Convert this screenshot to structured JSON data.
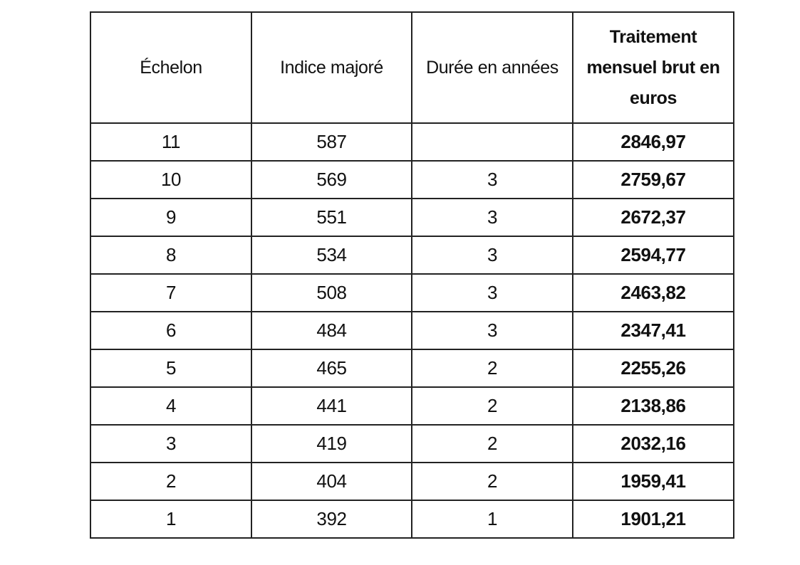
{
  "table": {
    "headers": {
      "echelon": "Échelon",
      "indice": "Indice majoré",
      "duree": "Durée en années",
      "traitement": "Traitement mensuel brut en euros"
    },
    "rows": [
      {
        "echelon": "11",
        "indice": "587",
        "duree": "",
        "traitement": "2846,97"
      },
      {
        "echelon": "10",
        "indice": "569",
        "duree": "3",
        "traitement": "2759,67"
      },
      {
        "echelon": "9",
        "indice": "551",
        "duree": "3",
        "traitement": "2672,37"
      },
      {
        "echelon": "8",
        "indice": "534",
        "duree": "3",
        "traitement": "2594,77"
      },
      {
        "echelon": "7",
        "indice": "508",
        "duree": "3",
        "traitement": "2463,82"
      },
      {
        "echelon": "6",
        "indice": "484",
        "duree": "3",
        "traitement": "2347,41"
      },
      {
        "echelon": "5",
        "indice": "465",
        "duree": "2",
        "traitement": "2255,26"
      },
      {
        "echelon": "4",
        "indice": "441",
        "duree": "2",
        "traitement": "2138,86"
      },
      {
        "echelon": "3",
        "indice": "419",
        "duree": "2",
        "traitement": "2032,16"
      },
      {
        "echelon": "2",
        "indice": "404",
        "duree": "2",
        "traitement": "1959,41"
      },
      {
        "echelon": "1",
        "indice": "392",
        "duree": "1",
        "traitement": "1901,21"
      }
    ]
  }
}
